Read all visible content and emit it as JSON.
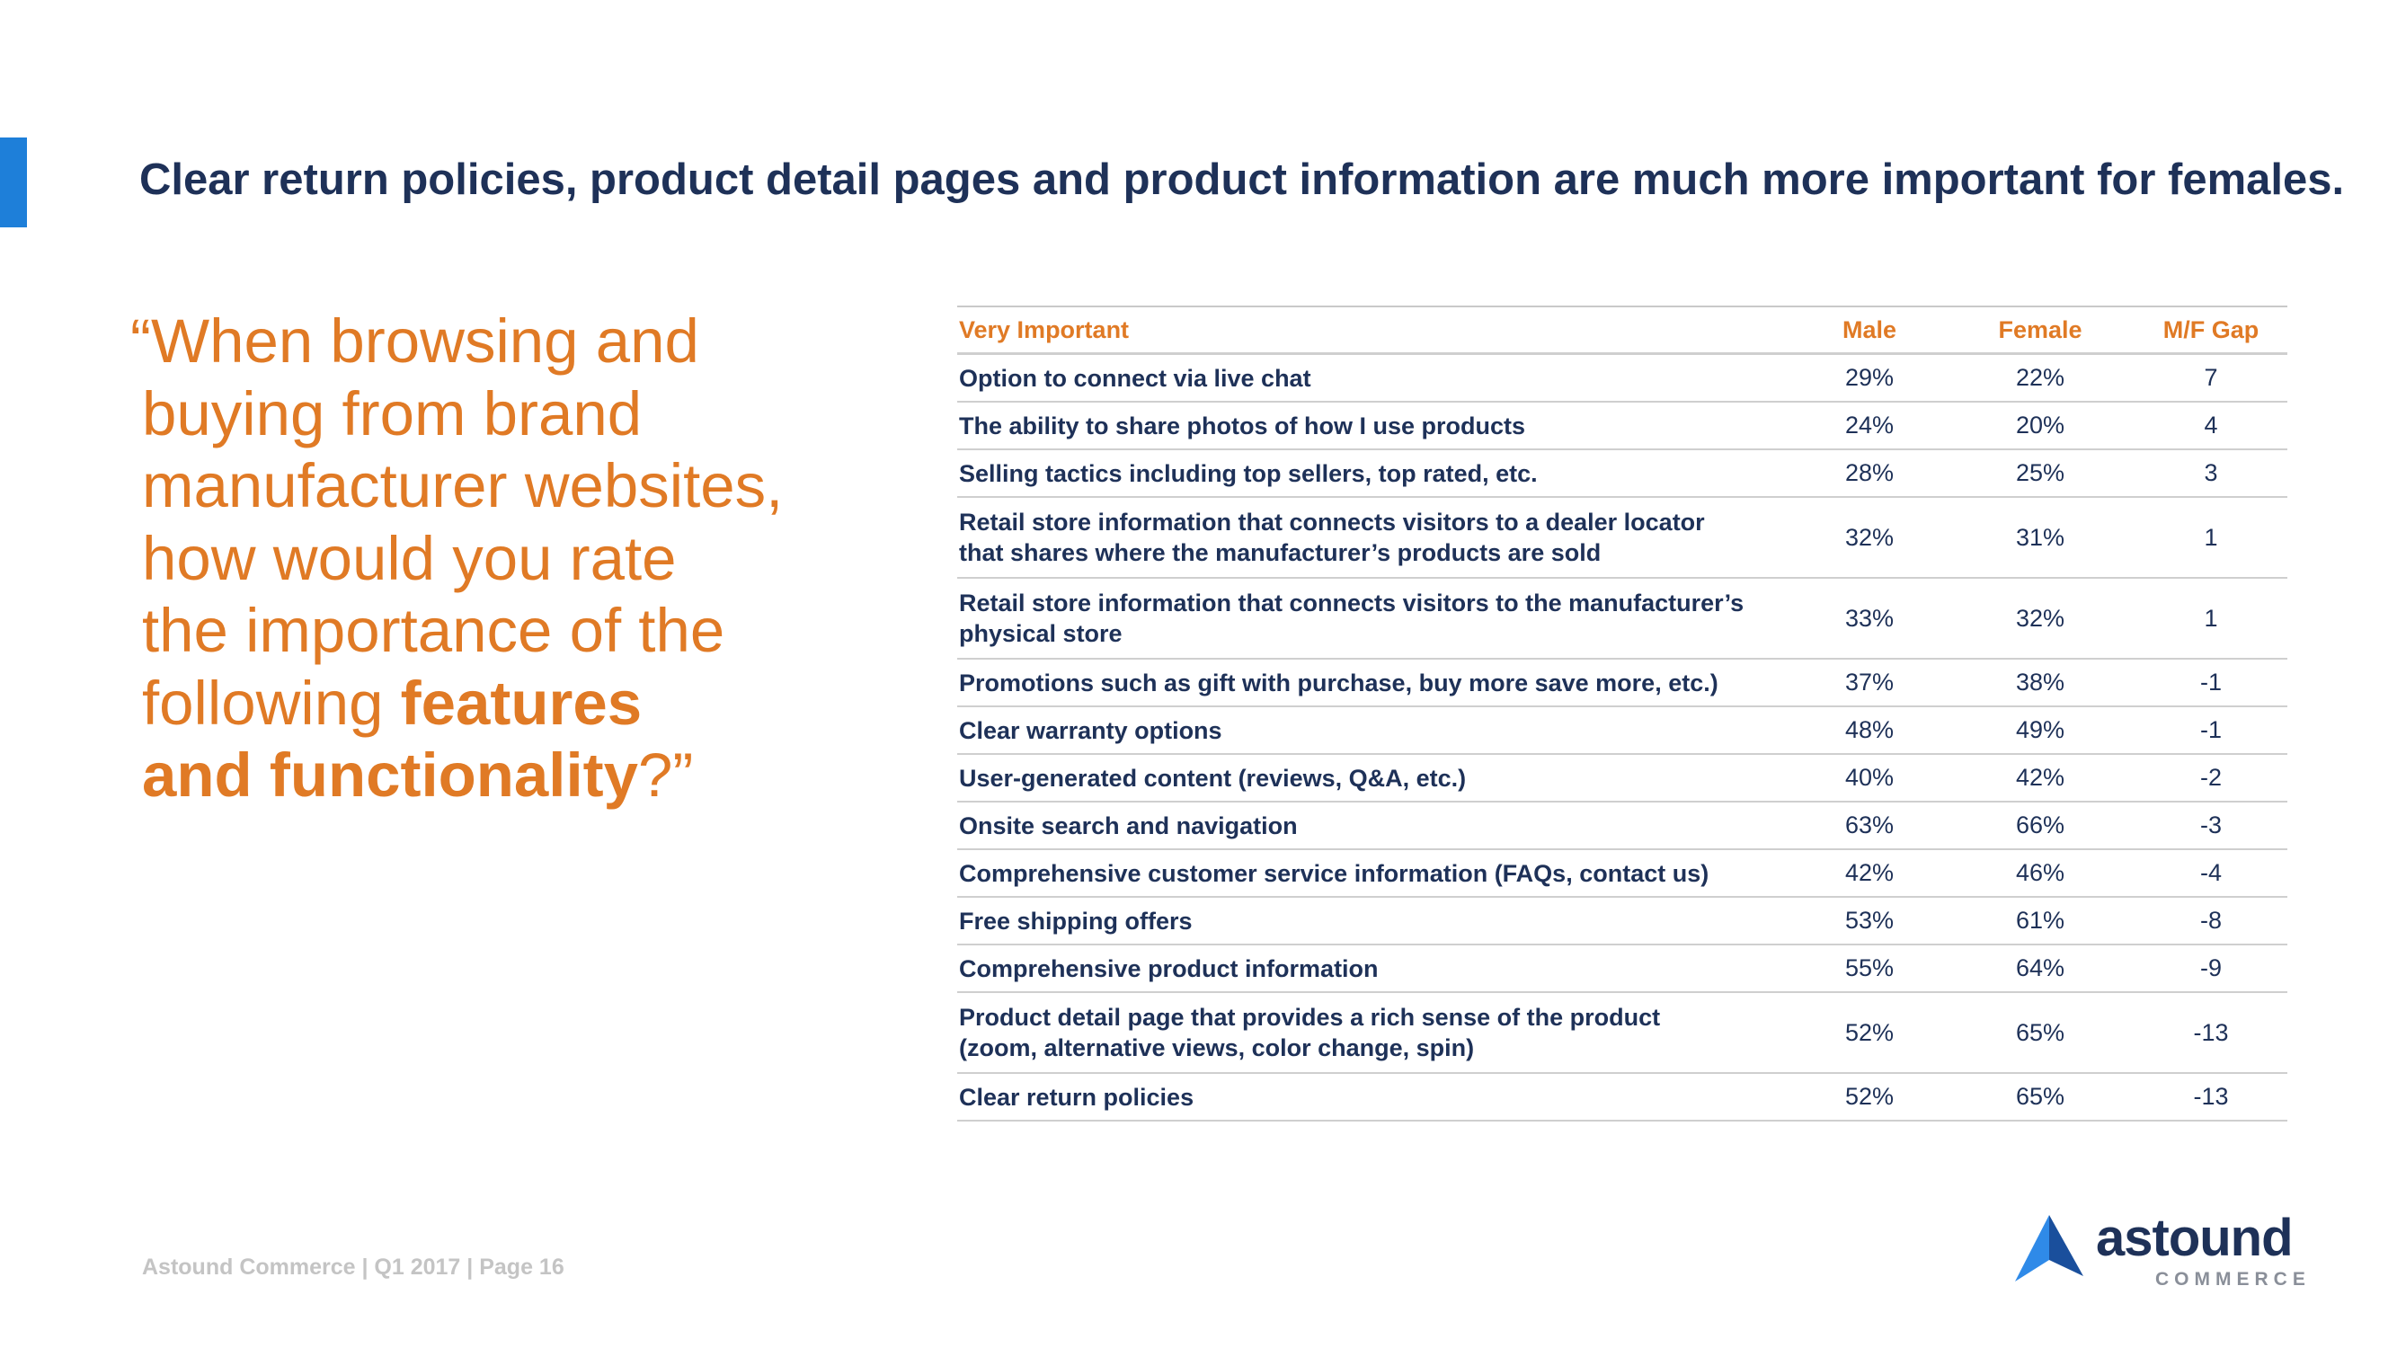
{
  "headline": "Clear return policies, product detail pages and product information are much more important for females.",
  "quote": {
    "line1": "“When browsing and",
    "line2": "buying from brand",
    "line3": "manufacturer websites,",
    "line4": "how would you rate",
    "line5": "the importance of the",
    "line6_plain": "following ",
    "line6_bold": "features",
    "line7_bold": "and functionality",
    "line7_plain": "?”"
  },
  "table": {
    "headers": {
      "label": "Very Important",
      "male": "Male",
      "female": "Female",
      "gap": "M/F Gap"
    },
    "rows": [
      {
        "label": "Option to connect via live chat",
        "male": "29%",
        "female": "22%",
        "gap": "7"
      },
      {
        "label": "The ability to share photos of how I use products",
        "male": "24%",
        "female": "20%",
        "gap": "4"
      },
      {
        "label": "Selling tactics including top sellers, top rated, etc.",
        "male": "28%",
        "female": "25%",
        "gap": "3"
      },
      {
        "label_line1": "Retail store information that connects visitors to a dealer locator",
        "label_line2": "that shares where the manufacturer’s products are sold",
        "male": "32%",
        "female": "31%",
        "gap": "1"
      },
      {
        "label_line1": "Retail store information that connects visitors to the manufacturer’s",
        "label_line2": "physical store",
        "male": "33%",
        "female": "32%",
        "gap": "1"
      },
      {
        "label": "Promotions such as gift with purchase, buy more save more, etc.)",
        "male": "37%",
        "female": "38%",
        "gap": "-1"
      },
      {
        "label": "Clear warranty options",
        "male": "48%",
        "female": "49%",
        "gap": "-1"
      },
      {
        "label": "User-generated content (reviews, Q&A, etc.)",
        "male": "40%",
        "female": "42%",
        "gap": "-2"
      },
      {
        "label": "Onsite search and navigation",
        "male": "63%",
        "female": "66%",
        "gap": "-3"
      },
      {
        "label": "Comprehensive customer service information (FAQs, contact us)",
        "male": "42%",
        "female": "46%",
        "gap": "-4"
      },
      {
        "label": "Free shipping offers",
        "male": "53%",
        "female": "61%",
        "gap": "-8"
      },
      {
        "label": "Comprehensive product information",
        "male": "55%",
        "female": "64%",
        "gap": "-9"
      },
      {
        "label_line1": "Product detail page that provides a rich sense of the product",
        "label_line2": "(zoom, alternative views, color change, spin)",
        "male": "52%",
        "female": "65%",
        "gap": "-13"
      },
      {
        "label": "Clear return policies",
        "male": "52%",
        "female": "65%",
        "gap": "-13"
      }
    ]
  },
  "footer": "Astound Commerce | Q1 2017 | Page 16",
  "logo": {
    "word": "astound",
    "sub": "COMMERCE",
    "icon": "triangle-logo-icon"
  },
  "colors": {
    "accent_blue": "#1e7fd9",
    "navy": "#1e3158",
    "orange": "#e07a25",
    "footer_gray": "#c4c4c4"
  }
}
